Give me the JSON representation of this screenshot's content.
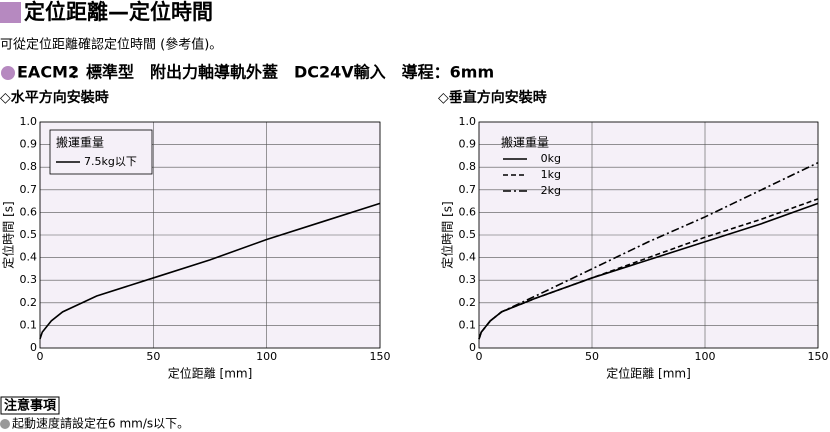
{
  "header": {
    "title": "定位距離—定位時間",
    "note": "可從定位距離確認定位時間 (參考值)。"
  },
  "spec": {
    "model": "EACM2",
    "description": "：標準型　附出力軸導軌外蓋　DC24V輸入　導程：6mm"
  },
  "chart_data": [
    {
      "type": "line",
      "title": "◇水平方向安裝時",
      "x_label": "定位距離 [mm]",
      "y_label": "定位時間 [s]",
      "legend_title": "搬運重量",
      "legend": "box",
      "x": [
        0,
        1,
        5,
        10,
        25,
        50,
        75,
        100,
        125,
        150
      ],
      "series": [
        {
          "name": "7.5kg以下",
          "color": "#000000",
          "dash": "solid",
          "values": [
            0.04,
            0.07,
            0.12,
            0.16,
            0.23,
            0.31,
            0.39,
            0.48,
            0.56,
            0.64
          ]
        }
      ],
      "xlim": [
        0,
        150
      ],
      "xticks": [
        0,
        50,
        100,
        150
      ],
      "ylim": [
        0,
        1
      ],
      "yticks": [
        0,
        0.1,
        0.2,
        0.3,
        0.4,
        0.5,
        0.6,
        0.7,
        0.8,
        0.9,
        {
          "value": 1,
          "label": "1.0"
        }
      ],
      "grid": true,
      "background": "#f5f0f8"
    },
    {
      "type": "line",
      "title": "◇垂直方向安裝時",
      "x_label": "定位距離 [mm]",
      "y_label": "定位時間 [s]",
      "legend_title": "搬運重量",
      "legend": "plain",
      "x": [
        0,
        1,
        5,
        10,
        25,
        50,
        75,
        100,
        125,
        150
      ],
      "series": [
        {
          "name": "0kg",
          "color": "#000000",
          "dash": "solid",
          "values": [
            0.04,
            0.07,
            0.12,
            0.16,
            0.22,
            0.31,
            0.39,
            0.47,
            0.55,
            0.64
          ]
        },
        {
          "name": "1kg",
          "color": "#000000",
          "dash": "dashed",
          "values": [
            0.04,
            0.07,
            0.12,
            0.16,
            0.22,
            0.31,
            0.4,
            0.49,
            0.57,
            0.66
          ]
        },
        {
          "name": "2kg",
          "color": "#000000",
          "dash": "dashdot",
          "values": [
            0.04,
            0.07,
            0.12,
            0.16,
            0.23,
            0.35,
            0.47,
            0.58,
            0.7,
            0.82
          ]
        }
      ],
      "xlim": [
        0,
        150
      ],
      "xticks": [
        0,
        50,
        100,
        150
      ],
      "ylim": [
        0,
        1
      ],
      "yticks": [
        0,
        0.1,
        0.2,
        0.3,
        0.4,
        0.5,
        0.6,
        0.7,
        0.8,
        0.9,
        {
          "value": 1,
          "label": "1.0"
        }
      ],
      "grid": true,
      "background": "#f5f0f8"
    }
  ],
  "footer": {
    "heading": "注意事項",
    "note": "起動速度請設定在6 mm/s以下。"
  }
}
